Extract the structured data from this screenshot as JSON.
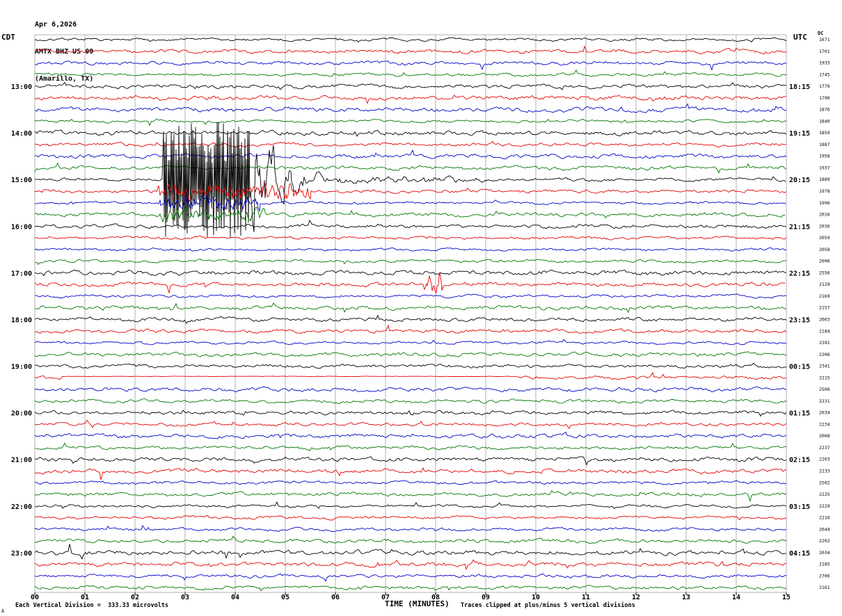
{
  "header": {
    "date": "Apr 6,2026",
    "station": "AMTX BHZ US 00",
    "location": "(Amarillo, TX)"
  },
  "axes": {
    "left_tz": "CDT",
    "right_tz": "UTC",
    "right_col_header": "DC",
    "x_label": "TIME (MINUTES)",
    "x_ticks": [
      "00",
      "01",
      "02",
      "03",
      "04",
      "05",
      "06",
      "07",
      "08",
      "09",
      "10",
      "11",
      "12",
      "13",
      "14",
      "15"
    ]
  },
  "footer": {
    "left": "Each Vertical Division =  333.33 microvolts",
    "right": "Traces clipped at plus/minus 5 vertical divisions",
    "corner": "A"
  },
  "chart_data": {
    "type": "line",
    "title": "Helicorder seismogram AMTX BHZ US 00 (Amarillo, TX), Apr 6,2026",
    "xlabel": "TIME (MINUTES)",
    "x_range": [
      0,
      15
    ],
    "minutes_per_row": 15,
    "num_rows": 48,
    "clip_divisions": 5,
    "microvolts_per_division": "333.33",
    "color_cycle": [
      "#000000",
      "#e60000",
      "#0000cc",
      "#007700"
    ],
    "grid_color": "#b0b0b0",
    "seed": 7,
    "left_labels": [
      {
        "row": 4,
        "text": "13:00"
      },
      {
        "row": 8,
        "text": "14:00"
      },
      {
        "row": 12,
        "text": "15:00"
      },
      {
        "row": 16,
        "text": "16:00"
      },
      {
        "row": 20,
        "text": "17:00"
      },
      {
        "row": 24,
        "text": "18:00"
      },
      {
        "row": 28,
        "text": "19:00"
      },
      {
        "row": 32,
        "text": "20:00"
      },
      {
        "row": 36,
        "text": "21:00"
      },
      {
        "row": 40,
        "text": "22:00"
      },
      {
        "row": 44,
        "text": "23:00"
      }
    ],
    "right_labels": [
      {
        "row": 4,
        "text": "18:15"
      },
      {
        "row": 8,
        "text": "19:15"
      },
      {
        "row": 12,
        "text": "20:15"
      },
      {
        "row": 16,
        "text": "21:15"
      },
      {
        "row": 20,
        "text": "22:15"
      },
      {
        "row": 24,
        "text": "23:15"
      },
      {
        "row": 28,
        "text": "00:15"
      },
      {
        "row": 32,
        "text": "01:15"
      },
      {
        "row": 36,
        "text": "02:15"
      },
      {
        "row": 40,
        "text": "03:15"
      },
      {
        "row": 44,
        "text": "04:15"
      }
    ],
    "right_values": [
      1671,
      1701,
      1933,
      1745,
      1776,
      1790,
      1876,
      1840,
      1859,
      1887,
      1958,
      1937,
      1889,
      1978,
      1996,
      2016,
      2036,
      2059,
      2058,
      2096,
      2556,
      2129,
      2169,
      2157,
      2603,
      2184,
      2391,
      2206,
      2341,
      2215,
      2506,
      2231,
      2034,
      2234,
      2008,
      2237,
      2203,
      2233,
      2502,
      2225,
      2229,
      2216,
      2044,
      2202,
      2034,
      2185,
      2706,
      2161
    ],
    "events": [
      {
        "row": 12,
        "type": "quake",
        "onset": 2.55,
        "clip_until": 4.3,
        "coda_until": 12.5,
        "max_div": 5
      },
      {
        "row": 13,
        "type": "burst",
        "start": 2.45,
        "end": 5.5,
        "amp_div": 0.5
      },
      {
        "row": 14,
        "type": "burst",
        "start": 2.5,
        "end": 4.5,
        "amp_div": 0.45
      },
      {
        "row": 15,
        "type": "burst",
        "start": 2.5,
        "end": 4.6,
        "amp_div": 0.35
      },
      {
        "row": 21,
        "type": "burst",
        "start": 7.75,
        "end": 8.15,
        "amp_div": 0.7
      },
      {
        "row": 29,
        "type": "flat",
        "start": 0.55,
        "end": 9.6
      }
    ],
    "event_description": "Large clipped earthquake signal beginning ~2.6 minutes into the 15:00 CDT (20:15 UTC) row, clipped at plus/minus 5 divisions, coda decaying over several minutes"
  }
}
